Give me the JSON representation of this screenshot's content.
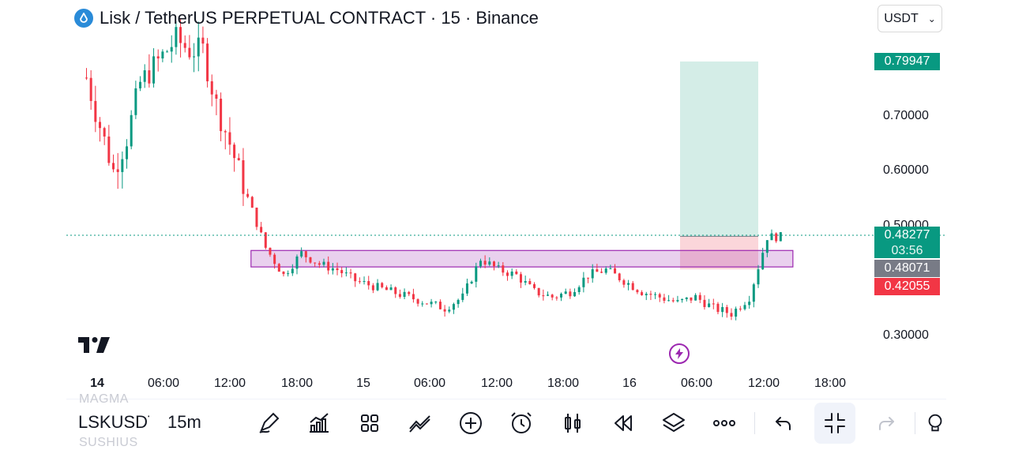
{
  "header": {
    "title": "Lisk / TetherUS PERPETUAL CONTRACT · 15 · Binance",
    "currency": "USDT",
    "logo_icon": "lisk-logo"
  },
  "price_scale": {
    "labels": [
      "0.70000",
      "0.60000",
      "0.50000",
      "0.30000"
    ]
  },
  "price_tags": {
    "target": "0.79947",
    "current": "0.48277",
    "countdown": "03:56",
    "entry": "0.48071",
    "stop": "0.42055"
  },
  "time_axis": {
    "labels": [
      "14",
      "06:00",
      "12:00",
      "18:00",
      "15",
      "06:00",
      "12:00",
      "18:00",
      "16",
      "06:00",
      "12:00",
      "18:00"
    ]
  },
  "toolbar": {
    "symbol": "LSKUSDT",
    "symbol_above": "MAGMA",
    "symbol_below": "SUSHIUS",
    "interval": "15m"
  },
  "colors": {
    "up": "#089981",
    "down": "#f23645",
    "zone": "#9c27b0",
    "target_fill": "#d4ede7",
    "stop_fill": "#fbd6da",
    "logo": "#2a8bd8"
  },
  "chart_data": {
    "type": "candlestick",
    "symbol": "LSKUSDT",
    "interval": "15m",
    "x_labels": [
      "14",
      "06:00",
      "12:00",
      "18:00",
      "15",
      "06:00",
      "12:00",
      "18:00",
      "16",
      "06:00",
      "12:00",
      "18:00"
    ],
    "y_ticks": [
      0.7,
      0.6,
      0.5,
      0.3
    ],
    "ylim": [
      0.27,
      0.84
    ],
    "last_price": 0.48277,
    "path": [
      [
        0,
        0.77
      ],
      [
        2,
        0.71
      ],
      [
        6,
        0.6
      ],
      [
        9,
        0.66
      ],
      [
        12,
        0.76
      ],
      [
        16,
        0.8
      ],
      [
        20,
        0.84
      ],
      [
        23,
        0.82
      ],
      [
        26,
        0.82
      ],
      [
        29,
        0.72
      ],
      [
        32,
        0.65
      ],
      [
        36,
        0.55
      ],
      [
        40,
        0.46
      ],
      [
        44,
        0.41
      ],
      [
        48,
        0.45
      ],
      [
        52,
        0.43
      ],
      [
        56,
        0.42
      ],
      [
        60,
        0.4
      ],
      [
        64,
        0.39
      ],
      [
        68,
        0.38
      ],
      [
        72,
        0.37
      ],
      [
        76,
        0.36
      ],
      [
        80,
        0.35
      ],
      [
        84,
        0.37
      ],
      [
        88,
        0.44
      ],
      [
        92,
        0.42
      ],
      [
        96,
        0.41
      ],
      [
        100,
        0.38
      ],
      [
        104,
        0.37
      ],
      [
        108,
        0.38
      ],
      [
        112,
        0.41
      ],
      [
        116,
        0.42
      ],
      [
        120,
        0.4
      ],
      [
        124,
        0.38
      ],
      [
        128,
        0.37
      ],
      [
        132,
        0.36
      ],
      [
        136,
        0.37
      ],
      [
        140,
        0.35
      ],
      [
        144,
        0.34
      ],
      [
        148,
        0.37
      ],
      [
        152,
        0.48
      ],
      [
        155,
        0.48
      ]
    ],
    "demand_zone": {
      "price_top": 0.455,
      "price_bottom": 0.425,
      "from_bar": 37,
      "to_bar": 158
    },
    "long_position": {
      "target": 0.79947,
      "entry": 0.48071,
      "stop": 0.42055
    }
  }
}
